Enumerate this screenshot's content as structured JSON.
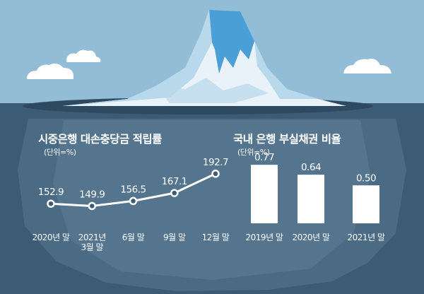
{
  "colors": {
    "sky": "#93bcd6",
    "sea": "#3c5c76",
    "ice_light": "#e8f2f8",
    "ice_mid": "#b8d8eb",
    "ice_blue": "#4aa0d6",
    "marks": "#ffffff"
  },
  "left_chart": {
    "title": "시중은행 대손충당금 적립률",
    "unit": "(단위=%)"
  },
  "right_chart": {
    "title": "국내 은행 부실채권 비율",
    "unit": "(단위=%)"
  },
  "chart_data": [
    {
      "type": "line",
      "title": "시중은행 대손충당금 적립률",
      "unit": "(단위=%)",
      "categories": [
        "2020년 말",
        "2021년\n3월 말",
        "6월 말",
        "9월 말",
        "12월 말"
      ],
      "values": [
        152.9,
        149.9,
        156.5,
        167.1,
        192.7
      ],
      "value_labels": [
        "152.9",
        "149.9",
        "156.5",
        "167.1",
        "192.7"
      ],
      "ylim": [
        140,
        200
      ],
      "grid": false
    },
    {
      "type": "bar",
      "title": "국내 은행 부실채권 비율",
      "unit": "(단위=%)",
      "categories": [
        "2019년 말",
        "2020년 말",
        "2021년 말"
      ],
      "values": [
        0.77,
        0.64,
        0.5
      ],
      "value_labels": [
        "0.77",
        "0.64",
        "0.50"
      ],
      "ylim": [
        0,
        0.8
      ],
      "grid": false
    }
  ]
}
